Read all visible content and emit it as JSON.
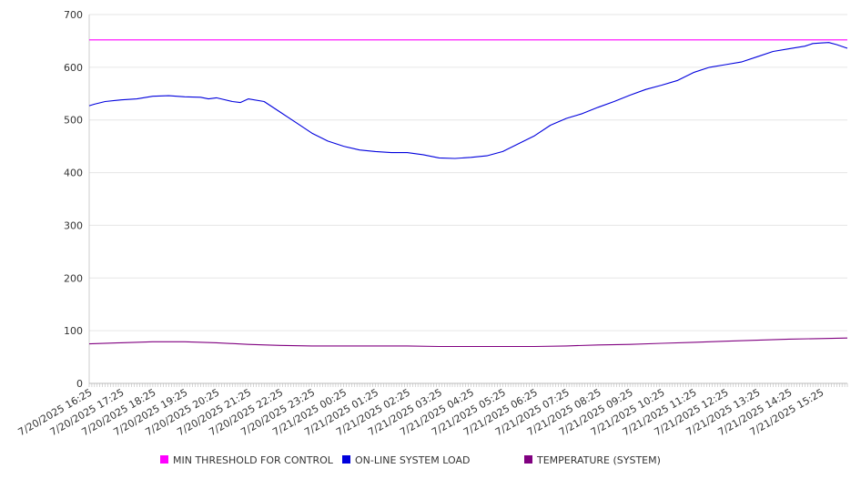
{
  "chart_data": {
    "type": "line",
    "title": "",
    "xlabel": "",
    "ylabel": "",
    "ylim": [
      0,
      700
    ],
    "y_ticks": [
      0,
      100,
      200,
      300,
      400,
      500,
      600,
      700
    ],
    "x_tick_labels": [
      "7/20/2025 16:25",
      "7/20/2025 17:25",
      "7/20/2025 18:25",
      "7/20/2025 19:25",
      "7/20/2025 20:25",
      "7/20/2025 21:25",
      "7/20/2025 22:25",
      "7/20/2025 23:25",
      "7/21/2025 00:25",
      "7/21/2025 01:25",
      "7/21/2025 02:25",
      "7/21/2025 03:25",
      "7/21/2025 04:25",
      "7/21/2025 05:25",
      "7/21/2025 06:25",
      "7/21/2025 07:25",
      "7/21/2025 08:25",
      "7/21/2025 09:25",
      "7/21/2025 10:25",
      "7/21/2025 11:25",
      "7/21/2025 12:25",
      "7/21/2025 13:25",
      "7/21/2025 14:25",
      "7/21/2025 15:25"
    ],
    "x_start": "7/20/2025 16:25",
    "x_end": "7/21/2025 16:15",
    "grid": "horizontal",
    "legend_position": "bottom",
    "series": [
      {
        "name": "MIN THRESHOLD FOR CONTROL",
        "color": "#ff00ff",
        "x": [
          "7/20/2025 16:25",
          "7/21/2025 16:15"
        ],
        "values": [
          652,
          652
        ]
      },
      {
        "name": "ON-LINE SYSTEM LOAD",
        "color": "#0000dd",
        "x": [
          "7/20/2025 16:25",
          "7/20/2025 16:35",
          "7/20/2025 16:55",
          "7/20/2025 17:25",
          "7/20/2025 17:55",
          "7/20/2025 18:25",
          "7/20/2025 18:55",
          "7/20/2025 19:25",
          "7/20/2025 19:55",
          "7/20/2025 20:10",
          "7/20/2025 20:25",
          "7/20/2025 20:55",
          "7/20/2025 21:10",
          "7/20/2025 21:25",
          "7/20/2025 21:55",
          "7/20/2025 22:25",
          "7/20/2025 22:55",
          "7/20/2025 23:25",
          "7/20/2025 23:55",
          "7/21/2025 00:25",
          "7/21/2025 00:55",
          "7/21/2025 01:25",
          "7/21/2025 01:55",
          "7/21/2025 02:25",
          "7/21/2025 02:55",
          "7/21/2025 03:25",
          "7/21/2025 03:55",
          "7/21/2025 04:25",
          "7/21/2025 04:55",
          "7/21/2025 05:25",
          "7/21/2025 05:55",
          "7/21/2025 06:25",
          "7/21/2025 06:55",
          "7/21/2025 07:25",
          "7/21/2025 07:55",
          "7/21/2025 08:25",
          "7/21/2025 08:55",
          "7/21/2025 09:25",
          "7/21/2025 09:55",
          "7/21/2025 10:25",
          "7/21/2025 10:55",
          "7/21/2025 11:25",
          "7/21/2025 11:55",
          "7/21/2025 12:25",
          "7/21/2025 12:55",
          "7/21/2025 13:25",
          "7/21/2025 13:55",
          "7/21/2025 14:25",
          "7/21/2025 14:55",
          "7/21/2025 15:10",
          "7/21/2025 15:25",
          "7/21/2025 15:40",
          "7/21/2025 15:55",
          "7/21/2025 16:15"
        ],
        "values": [
          527,
          530,
          535,
          538,
          540,
          545,
          546,
          544,
          543,
          540,
          542,
          535,
          533,
          540,
          535,
          515,
          495,
          475,
          460,
          450,
          443,
          440,
          438,
          438,
          434,
          428,
          427,
          429,
          432,
          440,
          455,
          470,
          490,
          503,
          512,
          524,
          535,
          547,
          558,
          566,
          575,
          590,
          600,
          605,
          610,
          620,
          630,
          635,
          640,
          645,
          646,
          647,
          643,
          636
        ]
      },
      {
        "name": "TEMPERATURE (SYSTEM)",
        "color": "#800080",
        "x": [
          "7/20/2025 16:25",
          "7/20/2025 17:25",
          "7/20/2025 18:25",
          "7/20/2025 19:25",
          "7/20/2025 20:25",
          "7/20/2025 21:25",
          "7/20/2025 22:25",
          "7/20/2025 23:25",
          "7/21/2025 00:25",
          "7/21/2025 01:25",
          "7/21/2025 02:25",
          "7/21/2025 03:25",
          "7/21/2025 04:25",
          "7/21/2025 05:25",
          "7/21/2025 06:25",
          "7/21/2025 07:25",
          "7/21/2025 08:25",
          "7/21/2025 09:25",
          "7/21/2025 10:25",
          "7/21/2025 11:25",
          "7/21/2025 12:25",
          "7/21/2025 13:25",
          "7/21/2025 14:25",
          "7/21/2025 15:25",
          "7/21/2025 16:15"
        ],
        "values": [
          75,
          77,
          79,
          79,
          77,
          74,
          72,
          71,
          71,
          71,
          71,
          70,
          70,
          70,
          70,
          71,
          73,
          74,
          76,
          78,
          80,
          82,
          84,
          85,
          86
        ]
      }
    ]
  }
}
